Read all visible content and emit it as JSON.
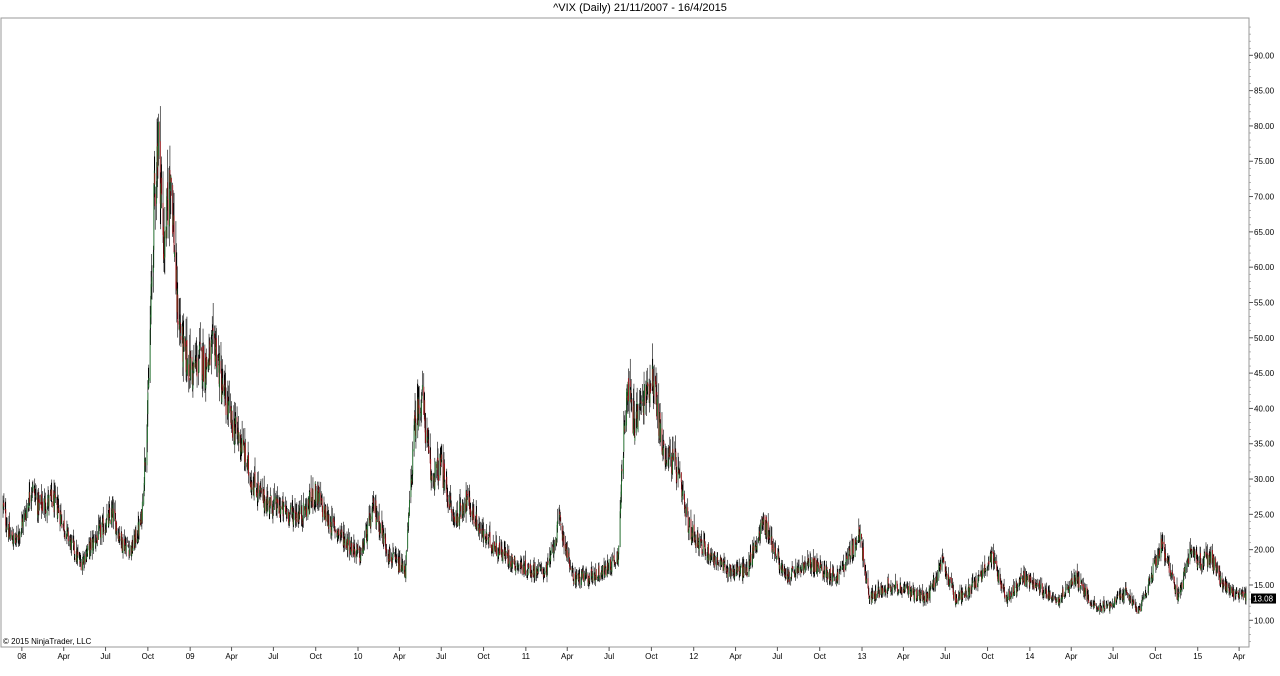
{
  "chart_data": {
    "type": "candlestick",
    "title": "^VIX (Daily)  21/11/2007 - 16/4/2015",
    "copyright": "© 2015 NinjaTrader, LLC",
    "last_value_label": "13.08",
    "last_value": 13.08,
    "ylim": [
      6.5,
      95
    ],
    "y_ticks": [
      10,
      15,
      20,
      25,
      30,
      35,
      40,
      45,
      50,
      55,
      60,
      65,
      70,
      75,
      80,
      85,
      90
    ],
    "y_tick_labels": [
      "10.00",
      "15.00",
      "20.00",
      "25.00",
      "30.00",
      "35.00",
      "40.00",
      "45.00",
      "50.00",
      "55.00",
      "60.00",
      "65.00",
      "70.00",
      "75.00",
      "80.00",
      "85.00",
      "90.00"
    ],
    "x_range": [
      "2007-11-21",
      "2015-04-16"
    ],
    "x_ticks": [
      {
        "label": "08",
        "date": "2008-01-01"
      },
      {
        "label": "Apr",
        "date": "2008-04-01"
      },
      {
        "label": "Jul",
        "date": "2008-07-01"
      },
      {
        "label": "Oct",
        "date": "2008-10-01"
      },
      {
        "label": "09",
        "date": "2009-01-01"
      },
      {
        "label": "Apr",
        "date": "2009-04-01"
      },
      {
        "label": "Jul",
        "date": "2009-07-01"
      },
      {
        "label": "Oct",
        "date": "2009-10-01"
      },
      {
        "label": "10",
        "date": "2010-01-01"
      },
      {
        "label": "Apr",
        "date": "2010-04-01"
      },
      {
        "label": "Jul",
        "date": "2010-07-01"
      },
      {
        "label": "Oct",
        "date": "2010-10-01"
      },
      {
        "label": "11",
        "date": "2011-01-01"
      },
      {
        "label": "Apr",
        "date": "2011-04-01"
      },
      {
        "label": "Jul",
        "date": "2011-07-01"
      },
      {
        "label": "Oct",
        "date": "2011-10-01"
      },
      {
        "label": "12",
        "date": "2012-01-01"
      },
      {
        "label": "Apr",
        "date": "2012-04-01"
      },
      {
        "label": "Jul",
        "date": "2012-07-01"
      },
      {
        "label": "Oct",
        "date": "2012-10-01"
      },
      {
        "label": "13",
        "date": "2013-01-01"
      },
      {
        "label": "Apr",
        "date": "2013-04-01"
      },
      {
        "label": "Jul",
        "date": "2013-07-01"
      },
      {
        "label": "Oct",
        "date": "2013-10-01"
      },
      {
        "label": "14",
        "date": "2014-01-01"
      },
      {
        "label": "Apr",
        "date": "2014-04-01"
      },
      {
        "label": "Jul",
        "date": "2014-07-01"
      },
      {
        "label": "Oct",
        "date": "2014-10-01"
      },
      {
        "label": "15",
        "date": "2015-01-01"
      },
      {
        "label": "Apr",
        "date": "2015-04-01"
      }
    ],
    "series": [
      {
        "values_description": "weekly close",
        "x": [
          "2007-11-21",
          "2007-12-05",
          "2007-12-19",
          "2008-01-09",
          "2008-01-23",
          "2008-02-06",
          "2008-03-05",
          "2008-03-19",
          "2008-04-09",
          "2008-05-07",
          "2008-06-04",
          "2008-06-25",
          "2008-07-16",
          "2008-08-06",
          "2008-08-27",
          "2008-09-17",
          "2008-10-01",
          "2008-10-15",
          "2008-10-24",
          "2008-11-05",
          "2008-11-20",
          "2008-12-03",
          "2008-12-17",
          "2009-01-07",
          "2009-01-21",
          "2009-02-04",
          "2009-02-25",
          "2009-03-11",
          "2009-04-01",
          "2009-04-22",
          "2009-05-13",
          "2009-06-10",
          "2009-07-08",
          "2009-08-05",
          "2009-09-02",
          "2009-10-01",
          "2009-10-28",
          "2009-11-25",
          "2010-01-06",
          "2010-02-05",
          "2010-03-10",
          "2010-04-14",
          "2010-05-05",
          "2010-05-20",
          "2010-06-09",
          "2010-06-30",
          "2010-07-28",
          "2010-08-25",
          "2010-09-29",
          "2010-11-03",
          "2010-12-08",
          "2011-01-12",
          "2011-02-16",
          "2011-03-16",
          "2011-04-13",
          "2011-05-18",
          "2011-06-22",
          "2011-07-20",
          "2011-08-08",
          "2011-08-24",
          "2011-09-21",
          "2011-10-03",
          "2011-10-26",
          "2011-11-23",
          "2011-12-21",
          "2012-01-25",
          "2012-03-14",
          "2012-04-25",
          "2012-06-01",
          "2012-07-18",
          "2012-09-12",
          "2012-11-07",
          "2012-12-28",
          "2013-01-16",
          "2013-02-27",
          "2013-04-17",
          "2013-05-22",
          "2013-06-24",
          "2013-07-24",
          "2013-09-04",
          "2013-10-09",
          "2013-11-13",
          "2013-12-18",
          "2014-02-03",
          "2014-03-05",
          "2014-04-11",
          "2014-05-21",
          "2014-06-25",
          "2014-07-31",
          "2014-08-27",
          "2014-10-15",
          "2014-11-19",
          "2014-12-16",
          "2015-01-07",
          "2015-01-28",
          "2015-02-25",
          "2015-03-18",
          "2015-04-16"
        ],
        "values": [
          26,
          22,
          21,
          25,
          29,
          26,
          27,
          26,
          22,
          18,
          21,
          23,
          25,
          21,
          20,
          24,
          40,
          70,
          79,
          62,
          74,
          55,
          48,
          45,
          47,
          46,
          49,
          43,
          38,
          35,
          30,
          27,
          26,
          25,
          25,
          28,
          24,
          22,
          19,
          26,
          19,
          17,
          38,
          42,
          30,
          32,
          24,
          27,
          22,
          20,
          18,
          17,
          17,
          24,
          16,
          16,
          17,
          19,
          44,
          38,
          42,
          45,
          34,
          32,
          23,
          20,
          17,
          17,
          24,
          16,
          18,
          16,
          22,
          13,
          15,
          14,
          13,
          18,
          13,
          15,
          19,
          13,
          16,
          14,
          13,
          16,
          12,
          12,
          14,
          11,
          21,
          13,
          20,
          18,
          19,
          15,
          14,
          13.08
        ]
      }
    ]
  }
}
